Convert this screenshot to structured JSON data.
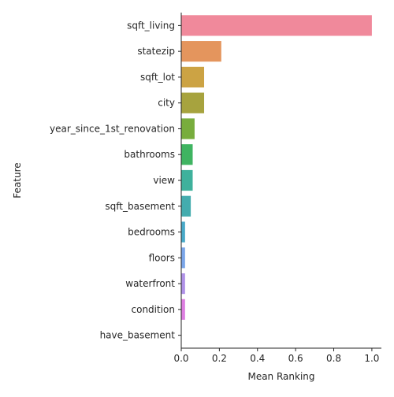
{
  "chart_data": {
    "type": "bar",
    "orientation": "horizontal",
    "xlabel": "Mean Ranking",
    "ylabel": "Feature",
    "xlim": [
      0,
      1.05
    ],
    "xticks": [
      0.0,
      0.2,
      0.4,
      0.6,
      0.8,
      1.0
    ],
    "xtick_labels": [
      "0.0",
      "0.2",
      "0.4",
      "0.6",
      "0.8",
      "1.0"
    ],
    "grid": false,
    "categories": [
      "sqft_living",
      "statezip",
      "sqft_lot",
      "city",
      "year_since_1st_renovation",
      "bathrooms",
      "view",
      "sqft_basement",
      "bedrooms",
      "floors",
      "waterfront",
      "condition",
      "have_basement"
    ],
    "values": [
      1.0,
      0.21,
      0.12,
      0.12,
      0.07,
      0.06,
      0.06,
      0.05,
      0.02,
      0.02,
      0.02,
      0.02,
      0.0
    ],
    "colors": [
      "#f0899b",
      "#e4955d",
      "#cca344",
      "#a7a33e",
      "#78ad3d",
      "#3fb461",
      "#3fb19c",
      "#44acae",
      "#48a9c8",
      "#7aa5e9",
      "#af91e7",
      "#dd7ee0",
      "#ed7ec2"
    ]
  }
}
